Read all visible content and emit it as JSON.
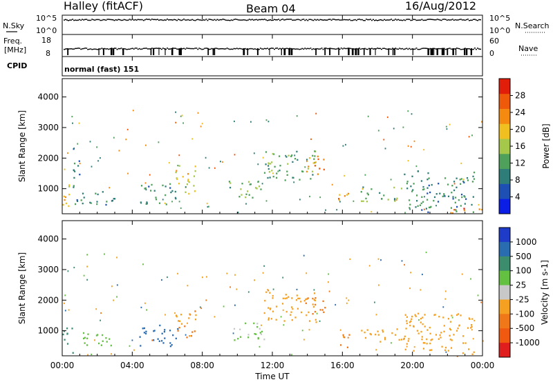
{
  "header": {
    "station": "Halley (fitACF)",
    "beam": "Beam 04",
    "date": "16/Aug/2012"
  },
  "strips": {
    "nsky_label": "N.Sky",
    "nsearch_label": "N.Search",
    "nsky_ticks": [
      "10^5",
      "10^0"
    ],
    "nsearch_ticks": [
      "10^5",
      "10^0"
    ],
    "freq_label_1": "Freq.",
    "freq_label_2": "[MHz]",
    "freq_ticks": [
      "18",
      "8"
    ],
    "nave_label": "Nave",
    "nave_ticks": [
      "60",
      "0"
    ],
    "cpid_label": "CPID",
    "cpid_value": "normal (fast) 151"
  },
  "x_axis": {
    "label": "Time UT",
    "ticks": [
      "00:00",
      "04:00",
      "08:00",
      "12:00",
      "16:00",
      "20:00",
      "00:00"
    ]
  },
  "colors": {
    "power": [
      "#0a1ee6",
      "#1e50b4",
      "#2f7d78",
      "#4ea05a",
      "#a6c84a",
      "#f0c020",
      "#f58a10",
      "#ee5a0a",
      "#e01e0a"
    ],
    "velocity": [
      "#1e3cc8",
      "#2a6cb0",
      "#3c8c6e",
      "#64c040",
      "#c8c8c8",
      "#f5a020",
      "#f07818",
      "#f05a10",
      "#e01e1e"
    ]
  },
  "chart_data": [
    {
      "type": "heatmap",
      "panel": "power",
      "xlabel": "",
      "ylabel": "Slant Range [km]",
      "x_range_hours": [
        0,
        24
      ],
      "ylim": [
        180,
        4600
      ],
      "y_ticks": [
        1000,
        2000,
        3000,
        4000
      ],
      "colorbar": {
        "label": "Power [dB]",
        "range": [
          0,
          32
        ],
        "ticks": [
          4,
          8,
          12,
          16,
          20,
          24,
          28
        ]
      },
      "echo_regions": [
        {
          "t": [
            0.0,
            0.6
          ],
          "r": [
            300,
            1200
          ],
          "v": 20
        },
        {
          "t": [
            0.6,
            1.0
          ],
          "r": [
            400,
            2500
          ],
          "v": 8
        },
        {
          "t": [
            1.0,
            3.0
          ],
          "r": [
            500,
            1000
          ],
          "v": 10
        },
        {
          "t": [
            4.4,
            6.6
          ],
          "r": [
            500,
            1200
          ],
          "v": 10
        },
        {
          "t": [
            6.4,
            7.6
          ],
          "r": [
            800,
            1800
          ],
          "v": 18
        },
        {
          "t": [
            9.5,
            11.5
          ],
          "r": [
            700,
            1300
          ],
          "v": 14
        },
        {
          "t": [
            11.5,
            14.5
          ],
          "r": [
            1300,
            2300
          ],
          "v": 12
        },
        {
          "t": [
            13.8,
            15.0
          ],
          "r": [
            1500,
            2100
          ],
          "v": 24
        },
        {
          "t": [
            15.6,
            16.4
          ],
          "r": [
            450,
            900
          ],
          "v": 22
        },
        {
          "t": [
            17.0,
            19.5
          ],
          "r": [
            600,
            1100
          ],
          "v": 14
        },
        {
          "t": [
            19.5,
            23.5
          ],
          "r": [
            250,
            1600
          ],
          "v": 10
        },
        {
          "t": [
            22.0,
            24.0
          ],
          "r": [
            200,
            400
          ],
          "v": 26
        }
      ]
    },
    {
      "type": "heatmap",
      "panel": "velocity",
      "xlabel": "Time UT",
      "ylabel": "Slant Range [km]",
      "x_range_hours": [
        0,
        24
      ],
      "ylim": [
        180,
        4600
      ],
      "y_ticks": [
        1000,
        2000,
        3000,
        4000
      ],
      "colorbar": {
        "label": "Velocity [m s-1]",
        "ticks": [
          1000,
          500,
          100,
          25,
          -25,
          -100,
          -500,
          -1000
        ]
      },
      "echo_regions": [
        {
          "t": [
            0.0,
            0.6
          ],
          "r": [
            300,
            1200
          ],
          "v": 100
        },
        {
          "t": [
            1.0,
            3.0
          ],
          "r": [
            500,
            1000
          ],
          "v": 25
        },
        {
          "t": [
            4.4,
            6.6
          ],
          "r": [
            500,
            1200
          ],
          "v": 500
        },
        {
          "t": [
            6.4,
            7.6
          ],
          "r": [
            800,
            1800
          ],
          "v": -300
        },
        {
          "t": [
            9.5,
            11.5
          ],
          "r": [
            700,
            1300
          ],
          "v": 0
        },
        {
          "t": [
            11.5,
            14.5
          ],
          "r": [
            1300,
            2300
          ],
          "v": -200
        },
        {
          "t": [
            13.8,
            15.0
          ],
          "r": [
            1500,
            2100
          ],
          "v": -700
        },
        {
          "t": [
            15.6,
            16.4
          ],
          "r": [
            450,
            900
          ],
          "v": -300
        },
        {
          "t": [
            17.0,
            19.5
          ],
          "r": [
            600,
            1100
          ],
          "v": -200
        },
        {
          "t": [
            19.5,
            23.5
          ],
          "r": [
            250,
            1600
          ],
          "v": -150
        }
      ]
    }
  ]
}
